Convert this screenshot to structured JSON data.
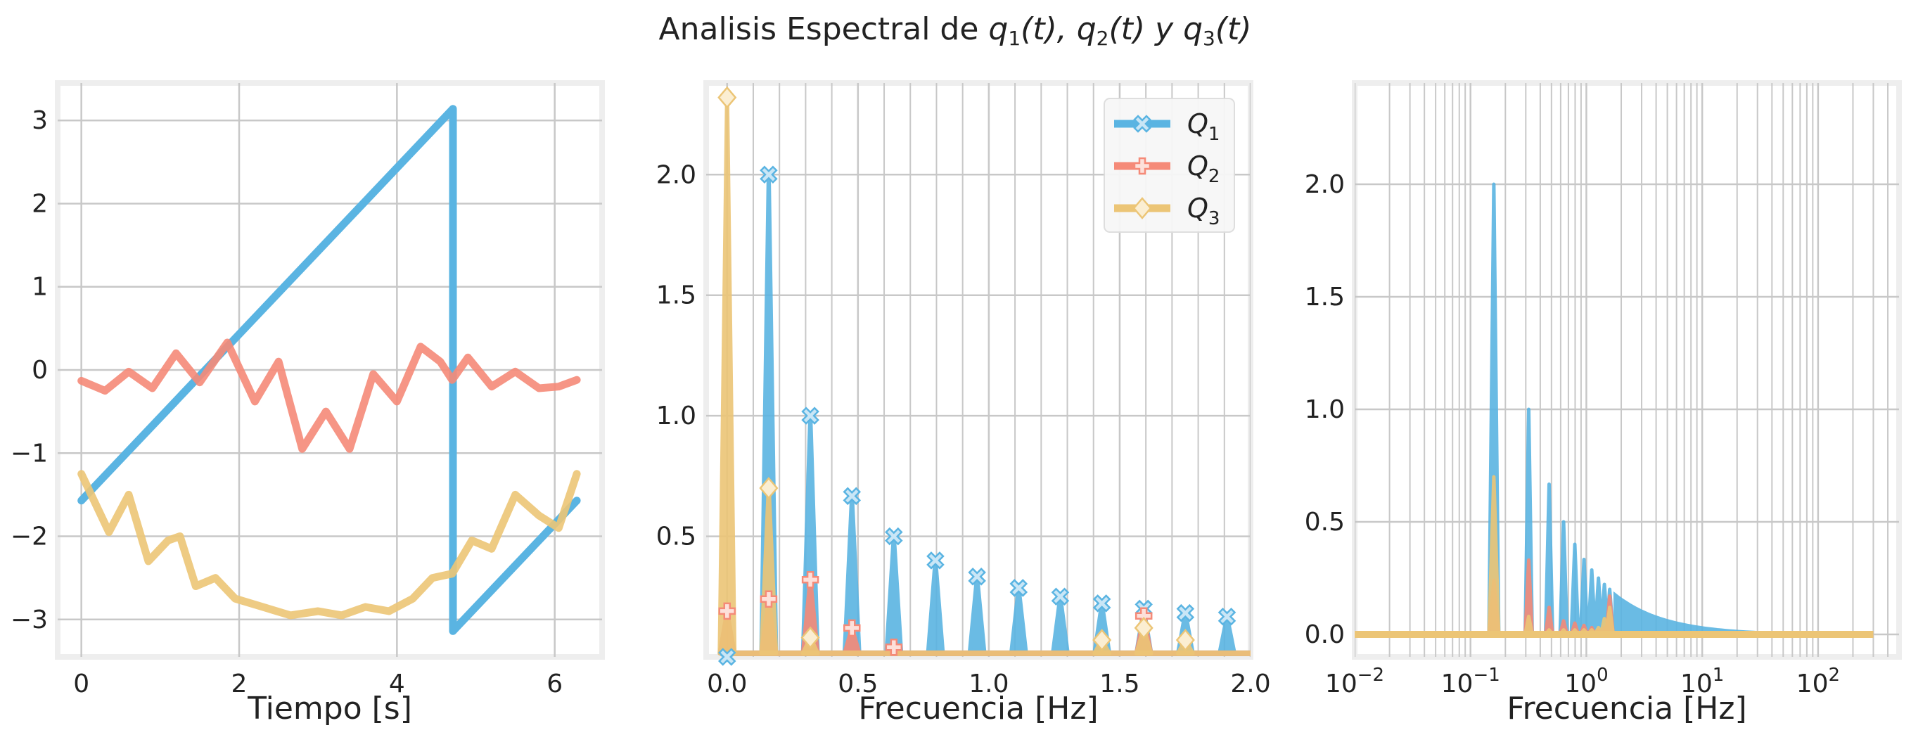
{
  "figure": {
    "title": "Analisis Espectral de q1(t), q2(t) y q3(t)",
    "title_parts": {
      "prefix": "Analisis Espectral de ",
      "q1": "q",
      "sub1": "1",
      "arg1": "(t), ",
      "q2": "q",
      "sub2": "2",
      "arg2": "(t) ",
      "conj": "y ",
      "q3": "q",
      "sub3": "3",
      "arg3": "(t)"
    },
    "colors": {
      "q1": "#5ab4e2",
      "q2": "#f58a78",
      "q3": "#ecc576",
      "grid": "#c8c8c8",
      "frame": "#eeeeee"
    }
  },
  "chart_data": [
    {
      "type": "line",
      "title": "",
      "xlabel": "Tiempo [s]",
      "ylabel": "",
      "xlim": [
        -0.3,
        6.6
      ],
      "ylim": [
        -3.45,
        3.45
      ],
      "xticks": [
        0,
        2,
        4,
        6
      ],
      "xtick_labels": [
        "0",
        "2",
        "4",
        "6"
      ],
      "yticks": [
        -3,
        -2,
        -1,
        0,
        1,
        2,
        3
      ],
      "ytick_labels": [
        "−3",
        "−2",
        "−1",
        "0",
        "1",
        "2",
        "3"
      ],
      "grid": true,
      "series": [
        {
          "key": "q1",
          "x": [
            0,
            4.71,
            4.71,
            6.28
          ],
          "y": [
            -1.57,
            3.14,
            -3.14,
            -1.57
          ]
        },
        {
          "key": "q2",
          "x": [
            0,
            0.3,
            0.6,
            0.9,
            1.2,
            1.5,
            1.85,
            2.2,
            2.5,
            2.8,
            3.1,
            3.4,
            3.7,
            4.0,
            4.3,
            4.55,
            4.7,
            4.9,
            5.2,
            5.5,
            5.8,
            6.05,
            6.28
          ],
          "y": [
            -0.13,
            -0.25,
            -0.02,
            -0.22,
            0.2,
            -0.15,
            0.33,
            -0.38,
            0.1,
            -0.95,
            -0.5,
            -0.95,
            -0.05,
            -0.38,
            0.28,
            0.1,
            -0.12,
            0.15,
            -0.2,
            -0.02,
            -0.22,
            -0.2,
            -0.12
          ]
        },
        {
          "key": "q3",
          "x": [
            0,
            0.15,
            0.35,
            0.6,
            0.85,
            1.1,
            1.25,
            1.45,
            1.7,
            1.95,
            2.3,
            2.65,
            3.0,
            3.3,
            3.6,
            3.9,
            4.2,
            4.45,
            4.7,
            4.95,
            5.2,
            5.5,
            5.8,
            6.05,
            6.28
          ],
          "y": [
            -1.25,
            -1.55,
            -1.95,
            -1.5,
            -2.3,
            -2.05,
            -2.0,
            -2.6,
            -2.5,
            -2.75,
            -2.85,
            -2.95,
            -2.9,
            -2.95,
            -2.85,
            -2.9,
            -2.75,
            -2.5,
            -2.45,
            -2.05,
            -2.15,
            -1.5,
            -1.75,
            -1.9,
            -1.25
          ]
        }
      ]
    },
    {
      "type": "line",
      "title": "",
      "xlabel": "Frecuencia [Hz]",
      "ylabel": "",
      "xlim": [
        -0.08,
        2.0
      ],
      "ylim": [
        0.0,
        2.38
      ],
      "xticks": [
        0.0,
        0.5,
        1.0,
        1.5,
        2.0
      ],
      "xtick_labels": [
        "0.0",
        "0.5",
        "1.0",
        "1.5",
        "2.0"
      ],
      "yticks": [
        0.5,
        1.0,
        1.5,
        2.0
      ],
      "ytick_labels": [
        "0.5",
        "1.0",
        "1.5",
        "2.0"
      ],
      "grid": true,
      "minor_xgrid_step": 0.1,
      "legend": {
        "position": "top-right",
        "entries": [
          {
            "key": "q1",
            "label": "Q",
            "sub": "1",
            "marker": "x"
          },
          {
            "key": "q2",
            "label": "Q",
            "sub": "2",
            "marker": "plus"
          },
          {
            "key": "q3",
            "label": "Q",
            "sub": "3",
            "marker": "diamond"
          }
        ]
      },
      "baseline": 0.015,
      "spike_half_width": 0.028,
      "series": [
        {
          "key": "q1",
          "marker": "x",
          "x": [
            0.0,
            0.159,
            0.318,
            0.477,
            0.637,
            0.796,
            0.955,
            1.114,
            1.273,
            1.432,
            1.592,
            1.751,
            1.91
          ],
          "y": [
            0.0,
            2.0,
            1.0,
            0.667,
            0.5,
            0.4,
            0.333,
            0.286,
            0.25,
            0.222,
            0.2,
            0.182,
            0.167
          ]
        },
        {
          "key": "q2",
          "marker": "plus",
          "x": [
            0.0,
            0.159,
            0.318,
            0.477,
            0.637,
            1.592
          ],
          "y": [
            0.19,
            0.24,
            0.32,
            0.12,
            0.04,
            0.17
          ]
        },
        {
          "key": "q3",
          "marker": "diamond",
          "x": [
            0.0,
            0.159,
            0.318,
            1.432,
            1.592,
            1.751
          ],
          "y": [
            2.32,
            0.7,
            0.08,
            0.07,
            0.12,
            0.07
          ]
        }
      ]
    },
    {
      "type": "line",
      "title": "",
      "xlabel": "Frecuencia [Hz]",
      "ylabel": "",
      "xscale": "log",
      "xlim": [
        0.01,
        500
      ],
      "ylim": [
        -0.1,
        2.45
      ],
      "xticks": [
        0.01,
        0.1,
        1,
        10,
        100
      ],
      "xtick_labels": [
        {
          "base": "10",
          "exp": "−2"
        },
        {
          "base": "10",
          "exp": "−1"
        },
        {
          "base": "10",
          "exp": "0"
        },
        {
          "base": "10",
          "exp": "1"
        },
        {
          "base": "10",
          "exp": "2"
        }
      ],
      "yticks": [
        0.0,
        0.5,
        1.0,
        1.5,
        2.0
      ],
      "ytick_labels": [
        "0.0",
        "0.5",
        "1.0",
        "1.5",
        "2.0"
      ],
      "grid": true,
      "x_end": 300,
      "series": [
        {
          "key": "q1",
          "fundamental": 0.159,
          "amplitudes": [
            2.0,
            1.0,
            0.667,
            0.5,
            0.4,
            0.333,
            0.286,
            0.25,
            0.222,
            0.2
          ]
        },
        {
          "key": "q2",
          "fundamental": 0.159,
          "amplitudes": [
            0.24,
            0.33,
            0.12,
            0.06,
            0.05,
            0.04,
            0.03,
            0.02,
            0.03,
            0.17
          ]
        },
        {
          "key": "q3",
          "fundamental": 0.159,
          "amplitudes": [
            0.7,
            0.08,
            0.02,
            0.02,
            0.02,
            0.02,
            0.02,
            0.03,
            0.07,
            0.12
          ]
        }
      ]
    }
  ]
}
